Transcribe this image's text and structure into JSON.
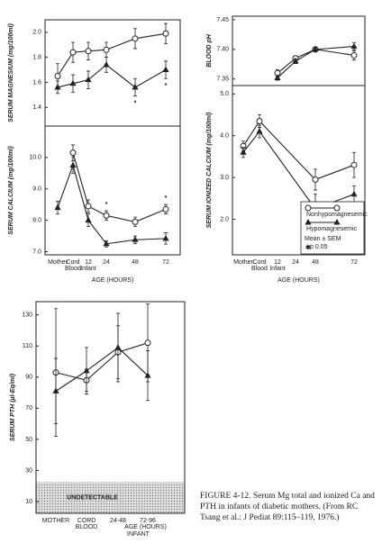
{
  "chart_data": [
    {
      "type": "line",
      "ylabel": "SERUM MAGNESIUM (mg/100ml)",
      "ylim": [
        1.25,
        2.1
      ],
      "yticks": [
        1.4,
        1.6,
        1.8,
        {
          "value": 2,
          "label": "2.0"
        }
      ],
      "series": [
        {
          "marker": "circle",
          "color": "#222",
          "values": [
            1.65,
            1.84,
            1.85,
            1.86,
            1.95,
            1.99
          ],
          "errors": [
            0.1,
            0.08,
            0.07,
            0.06,
            0.08,
            0.08
          ]
        },
        {
          "marker": "triangle",
          "color": "#222",
          "values": [
            1.56,
            1.59,
            1.62,
            1.74,
            1.56,
            1.7
          ],
          "errors": [
            0.05,
            0.07,
            0.07,
            0.06,
            0.07,
            0.07
          ]
        }
      ],
      "significance_marks": [
        null,
        null,
        null,
        null,
        "*",
        "*"
      ]
    },
    {
      "type": "line",
      "ylabel": "SERUM CALCIUM (mg/100ml)",
      "ylim": [
        6.9,
        11.0
      ],
      "yticks": [
        {
          "value": 7,
          "label": "7.0"
        },
        {
          "value": 8,
          "label": "8.0"
        },
        {
          "value": 9,
          "label": "9.0"
        },
        {
          "value": 10,
          "label": "10.0"
        }
      ],
      "categories": [
        "Mother",
        "Cord",
        "12",
        "24",
        "48",
        "72"
      ],
      "x_sublabels": [
        null,
        "Blood",
        "Infant",
        null,
        null,
        null
      ],
      "xlabel": "AGE (HOURS)",
      "series": [
        {
          "marker": "circle",
          "color": "#222",
          "values": [
            null,
            10.15,
            8.45,
            8.15,
            7.95,
            8.35
          ],
          "errors": [
            null,
            0.25,
            0.2,
            0.15,
            0.15,
            0.15
          ]
        },
        {
          "marker": "triangle",
          "color": "#222",
          "values": [
            8.4,
            9.75,
            8.0,
            7.25,
            7.38,
            7.42
          ],
          "errors": [
            0.2,
            0.25,
            0.2,
            0.1,
            0.12,
            0.18
          ]
        }
      ],
      "significance_marks": [
        null,
        null,
        null,
        "*",
        null,
        "*"
      ]
    },
    {
      "type": "line",
      "ylabel": "BLOOD pH",
      "ylim": [
        7.339,
        7.456
      ],
      "yticks": [
        7.35,
        {
          "value": 7.4,
          "label": "7.40"
        },
        7.45
      ],
      "series": [
        {
          "marker": "circle",
          "color": "#222",
          "values": [
            null,
            null,
            7.36,
            7.385,
            7.4,
            7.39
          ],
          "errors": [
            null,
            null,
            0.006,
            0.004,
            0.004,
            0.008
          ]
        },
        {
          "marker": "triangle",
          "color": "#222",
          "values": [
            null,
            null,
            7.352,
            7.38,
            7.4,
            7.405
          ],
          "errors": [
            null,
            null,
            0.004,
            0.004,
            0.003,
            0.006
          ]
        }
      ]
    },
    {
      "type": "line",
      "ylabel": "SERUM IONIZED CALCIUM (mg/100ml)",
      "ylim": [
        1.15,
        5.2
      ],
      "yticks": [
        {
          "value": 2,
          "label": "2.0"
        },
        {
          "value": 3,
          "label": "3.0"
        },
        {
          "value": 4,
          "label": "4.0"
        },
        {
          "value": 5,
          "label": "5.0"
        }
      ],
      "categories": [
        "Mother",
        "Cord",
        "12",
        "24",
        "48",
        "72"
      ],
      "x_sublabels": [
        null,
        "Blood",
        "Infant",
        null,
        null,
        null
      ],
      "xlabel": "AGE (HOURS)",
      "series": [
        {
          "name": "Nonhypomagnesemic",
          "marker": "circle",
          "color": "#222",
          "x": [
            "Mother",
            "Cord",
            "48",
            "72"
          ],
          "values": [
            3.75,
            4.35,
            2.95,
            3.3
          ],
          "errors": [
            0.12,
            0.15,
            0.25,
            0.3
          ]
        },
        {
          "name": "Hypomagnesemic",
          "marker": "triangle",
          "color": "#222",
          "x": [
            "Mother",
            "Cord",
            "48",
            "72"
          ],
          "values": [
            3.6,
            4.1,
            2.25,
            2.6
          ],
          "errors": [
            0.12,
            0.15,
            0.35,
            0.2
          ]
        }
      ],
      "significance_marks": [
        null,
        null,
        null,
        null,
        "*",
        null
      ],
      "legend_notes": [
        "Mean ± SEM",
        "p 0.05"
      ]
    },
    {
      "type": "line",
      "ylabel": "SERUM PTH (µl-Eq/ml)",
      "ylim": [
        2.5,
        138.5
      ],
      "yticks": [
        10,
        30,
        50,
        70,
        90,
        110,
        130
      ],
      "categories": [
        "MOTHER",
        "CORD",
        "24-48",
        "72-96"
      ],
      "x_sublabels": [
        null,
        "BLOOD",
        null,
        null
      ],
      "xlabel": "AGE (HOURS)",
      "x_group_label": "INFANT",
      "undetectable": {
        "below": 22.5,
        "label": "UNDETECTABLE"
      },
      "series": [
        {
          "marker": "circle",
          "color": "#222",
          "values": [
            93,
            88,
            106,
            112
          ],
          "errors": [
            41,
            7,
            17,
            25
          ]
        },
        {
          "marker": "triangle",
          "color": "#222",
          "values": [
            81,
            94,
            109,
            91
          ],
          "errors": [
            21,
            15,
            22,
            16
          ]
        }
      ]
    }
  ],
  "caption": "FIGURE 4-12. Serum Mg total and ionized Ca and PTH in infants of diabetic mothers. (From RC Tsang et al.: J Pediat 89:115–119, 1976.)"
}
